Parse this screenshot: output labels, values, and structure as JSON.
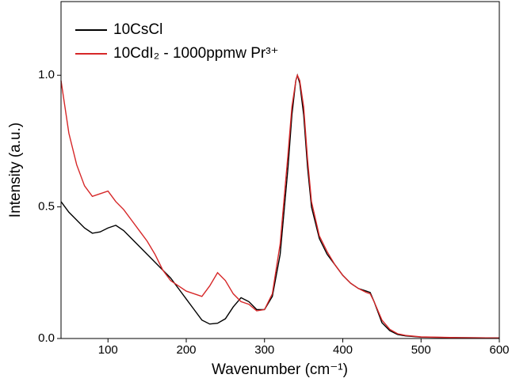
{
  "chart_data": {
    "type": "line",
    "xlabel": "Wavenumber (cm⁻¹)",
    "ylabel": "Intensity (a.u.)",
    "x": [
      40,
      50,
      60,
      70,
      80,
      90,
      100,
      110,
      120,
      130,
      140,
      150,
      160,
      170,
      180,
      190,
      200,
      210,
      220,
      230,
      240,
      250,
      260,
      270,
      280,
      290,
      300,
      310,
      320,
      330,
      335,
      340,
      342,
      345,
      350,
      355,
      360,
      370,
      380,
      390,
      400,
      410,
      420,
      430,
      435,
      440,
      450,
      460,
      470,
      480,
      500,
      550,
      600
    ],
    "series": [
      {
        "name": "10CsCl",
        "color": "#000000",
        "values": [
          0.52,
          0.48,
          0.45,
          0.42,
          0.4,
          0.405,
          0.42,
          0.43,
          0.41,
          0.38,
          0.35,
          0.32,
          0.29,
          0.26,
          0.23,
          0.19,
          0.15,
          0.11,
          0.07,
          0.055,
          0.058,
          0.075,
          0.12,
          0.155,
          0.14,
          0.11,
          0.11,
          0.16,
          0.32,
          0.65,
          0.85,
          0.98,
          1.0,
          0.97,
          0.85,
          0.65,
          0.5,
          0.38,
          0.32,
          0.28,
          0.24,
          0.21,
          0.19,
          0.18,
          0.175,
          0.14,
          0.06,
          0.03,
          0.015,
          0.01,
          0.005,
          0.003,
          0.002
        ]
      },
      {
        "name": "10CdI₂ - 1000ppmw Pr³⁺",
        "color": "#d62728",
        "values": [
          0.98,
          0.78,
          0.66,
          0.58,
          0.54,
          0.55,
          0.56,
          0.52,
          0.49,
          0.45,
          0.41,
          0.37,
          0.32,
          0.26,
          0.22,
          0.2,
          0.18,
          0.17,
          0.16,
          0.2,
          0.25,
          0.22,
          0.17,
          0.14,
          0.13,
          0.105,
          0.11,
          0.17,
          0.36,
          0.7,
          0.88,
          0.98,
          1.0,
          0.98,
          0.88,
          0.68,
          0.52,
          0.39,
          0.33,
          0.28,
          0.24,
          0.21,
          0.19,
          0.175,
          0.17,
          0.14,
          0.07,
          0.035,
          0.018,
          0.012,
          0.006,
          0.003,
          0.002
        ]
      }
    ],
    "xlim": [
      40,
      600
    ],
    "xticks": [
      100,
      200,
      300,
      400,
      500,
      600
    ],
    "ylim": [
      0,
      1.28
    ],
    "yticks": [
      {
        "value": 0,
        "label": "0.0"
      },
      0.5,
      {
        "value": 1,
        "label": "1.0"
      }
    ],
    "legend": "upper left"
  }
}
